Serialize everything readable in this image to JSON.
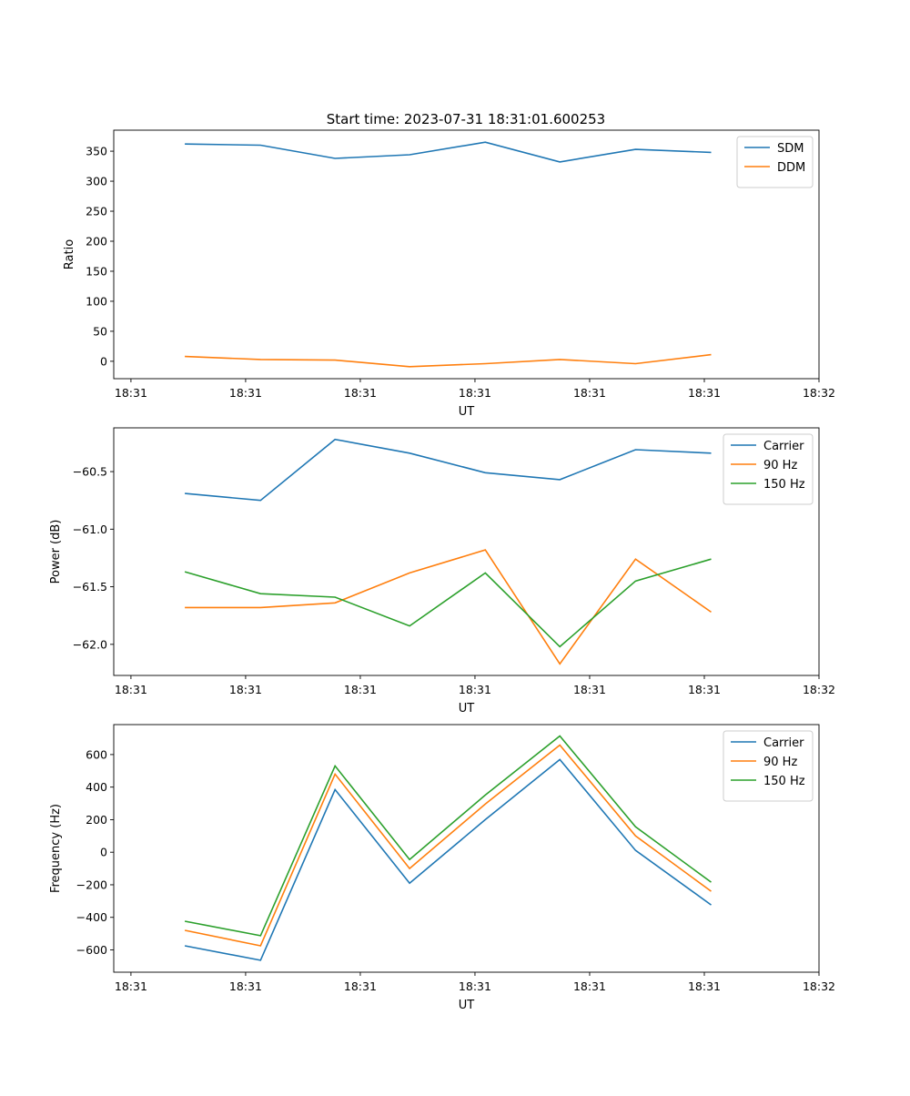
{
  "figure_title": "Start time: 2023-07-31 18:31:01.600253",
  "chart_data": [
    {
      "type": "line",
      "title": "Start time: 2023-07-31 18:31:01.600253",
      "xlabel": "UT",
      "ylabel": "Ratio",
      "x": [
        4.7,
        11.3,
        17.8,
        24.3,
        30.9,
        37.4,
        44.0,
        50.6
      ],
      "xlim": [
        -1.5,
        60.0
      ],
      "xticks": [
        0,
        10,
        20,
        30,
        40,
        50,
        60
      ],
      "xtick_labels": [
        "18:31",
        "18:31",
        "18:31",
        "18:31",
        "18:31",
        "18:31",
        "18:32"
      ],
      "ylim": [
        -29,
        385
      ],
      "yticks": [
        0,
        50,
        100,
        150,
        200,
        250,
        300,
        350
      ],
      "ytick_labels": [
        "0",
        "50",
        "100",
        "150",
        "200",
        "250",
        "300",
        "350"
      ],
      "legend": "top-right",
      "series": [
        {
          "name": "SDM",
          "color": "#1f77b4",
          "values": [
            362,
            360,
            338,
            344,
            365,
            332,
            353,
            348
          ]
        },
        {
          "name": "DDM",
          "color": "#ff7f0e",
          "values": [
            8,
            3,
            2,
            -9,
            -4,
            3,
            -4,
            11
          ]
        }
      ]
    },
    {
      "type": "line",
      "xlabel": "UT",
      "ylabel": "Power (dB)",
      "x": [
        4.7,
        11.3,
        17.8,
        24.3,
        30.9,
        37.4,
        44.0,
        50.6
      ],
      "xlim": [
        -1.5,
        60.0
      ],
      "xticks": [
        0,
        10,
        20,
        30,
        40,
        50,
        60
      ],
      "xtick_labels": [
        "18:31",
        "18:31",
        "18:31",
        "18:31",
        "18:31",
        "18:31",
        "18:32"
      ],
      "ylim": [
        -62.27,
        -60.12
      ],
      "yticks": [
        -62.0,
        -61.5,
        -61.0,
        -60.5
      ],
      "ytick_labels": [
        "−62.0",
        "−61.5",
        "−61.0",
        "−60.5"
      ],
      "legend": "top-right",
      "series": [
        {
          "name": "Carrier",
          "color": "#1f77b4",
          "values": [
            -60.69,
            -60.75,
            -60.22,
            -60.34,
            -60.51,
            -60.57,
            -60.31,
            -60.34
          ]
        },
        {
          "name": "90 Hz",
          "color": "#ff7f0e",
          "values": [
            -61.68,
            -61.68,
            -61.64,
            -61.38,
            -61.18,
            -62.17,
            -61.26,
            -61.72
          ]
        },
        {
          "name": "150 Hz",
          "color": "#2ca02c",
          "values": [
            -61.37,
            -61.56,
            -61.59,
            -61.84,
            -61.38,
            -62.02,
            -61.45,
            -61.26
          ]
        }
      ]
    },
    {
      "type": "line",
      "xlabel": "UT",
      "ylabel": "Frequency (Hz)",
      "x": [
        4.7,
        11.3,
        17.8,
        24.3,
        30.9,
        37.4,
        44.0,
        50.6
      ],
      "xlim": [
        -1.5,
        60.0
      ],
      "xticks": [
        0,
        10,
        20,
        30,
        40,
        50,
        60
      ],
      "xtick_labels": [
        "18:31",
        "18:31",
        "18:31",
        "18:31",
        "18:31",
        "18:31",
        "18:32"
      ],
      "ylim": [
        -737,
        784
      ],
      "yticks": [
        -600,
        -400,
        -200,
        0,
        200,
        400,
        600
      ],
      "ytick_labels": [
        "−600",
        "−400",
        "−200",
        "0",
        "200",
        "400",
        "600"
      ],
      "legend": "top-right",
      "series": [
        {
          "name": "Carrier",
          "color": "#1f77b4",
          "values": [
            -575,
            -664,
            385,
            -190,
            200,
            569,
            11,
            -324
          ]
        },
        {
          "name": "90 Hz",
          "color": "#ff7f0e",
          "values": [
            -480,
            -575,
            480,
            -100,
            296,
            658,
            100,
            -240
          ]
        },
        {
          "name": "150 Hz",
          "color": "#2ca02c",
          "values": [
            -424,
            -513,
            530,
            -45,
            351,
            714,
            156,
            -184
          ]
        }
      ]
    }
  ]
}
